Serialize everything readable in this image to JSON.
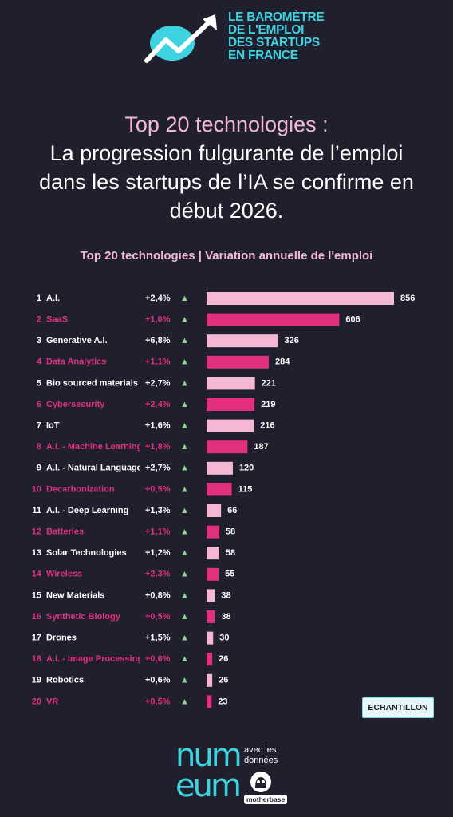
{
  "logo": {
    "lines": [
      "LE BAROMÈTRE",
      "DE L'EMPLOI",
      "DES STARTUPS",
      "EN FRANCE"
    ]
  },
  "headline": {
    "line1": "Top 20 technologies :",
    "line2": "La progression fulgurante de l’emploi",
    "line3": "dans les startups de l’IA se confirme en",
    "line4": "début 2026."
  },
  "chart_data": {
    "type": "bar",
    "orientation": "horizontal",
    "title": "Top 20 technologies | Variation annuelle de l'emploi",
    "ranks": [
      "1",
      "2",
      "3",
      "4",
      "5",
      "6",
      "7",
      "8",
      "9",
      "10",
      "11",
      "12",
      "13",
      "14",
      "15",
      "16",
      "17",
      "18",
      "19",
      "20"
    ],
    "categories": [
      "A.I.",
      "SaaS",
      "Generative A.I.",
      "Data Analytics",
      "Bio sourced materials",
      "Cybersecurity",
      "IoT",
      "A.I. - Machine Learning",
      "A.I. - Natural Language",
      "Decarbonization",
      "A.I. - Deep Learning",
      "Batteries",
      "Solar Technologies",
      "Wireless",
      "New Materials",
      "Synthetic Biology",
      "Drones",
      "A.I. - Image Processing",
      "Robotics",
      "VR"
    ],
    "values": [
      856,
      606,
      326,
      284,
      221,
      219,
      216,
      187,
      120,
      115,
      66,
      58,
      58,
      55,
      38,
      38,
      30,
      26,
      26,
      23
    ],
    "variations": [
      "+2,4%",
      "+1,0%",
      "+6,8%",
      "+1,1%",
      "+2,7%",
      "+2,4%",
      "+1,6%",
      "+1,8%",
      "+2,7%",
      "+0,5%",
      "+1,3%",
      "+1,1%",
      "+1,2%",
      "+2,3%",
      "+0,8%",
      "+0,5%",
      "+1,5%",
      "+0,6%",
      "+0,6%",
      "+0,5%"
    ],
    "trend_symbol": "▲",
    "colors": {
      "odd_rows": "#f4b8d4",
      "even_rows": "#e0307e",
      "odd_text": "#ffffff",
      "even_text": "#e0307e",
      "trend_up": "#8fd68a"
    }
  },
  "badge": {
    "label": "ECHANTILLON"
  },
  "footer": {
    "numeum_line1": "num",
    "numeum_line2": "eum",
    "avec_line1": "avec les",
    "avec_line2": "données",
    "motherbase": "motherbase"
  }
}
